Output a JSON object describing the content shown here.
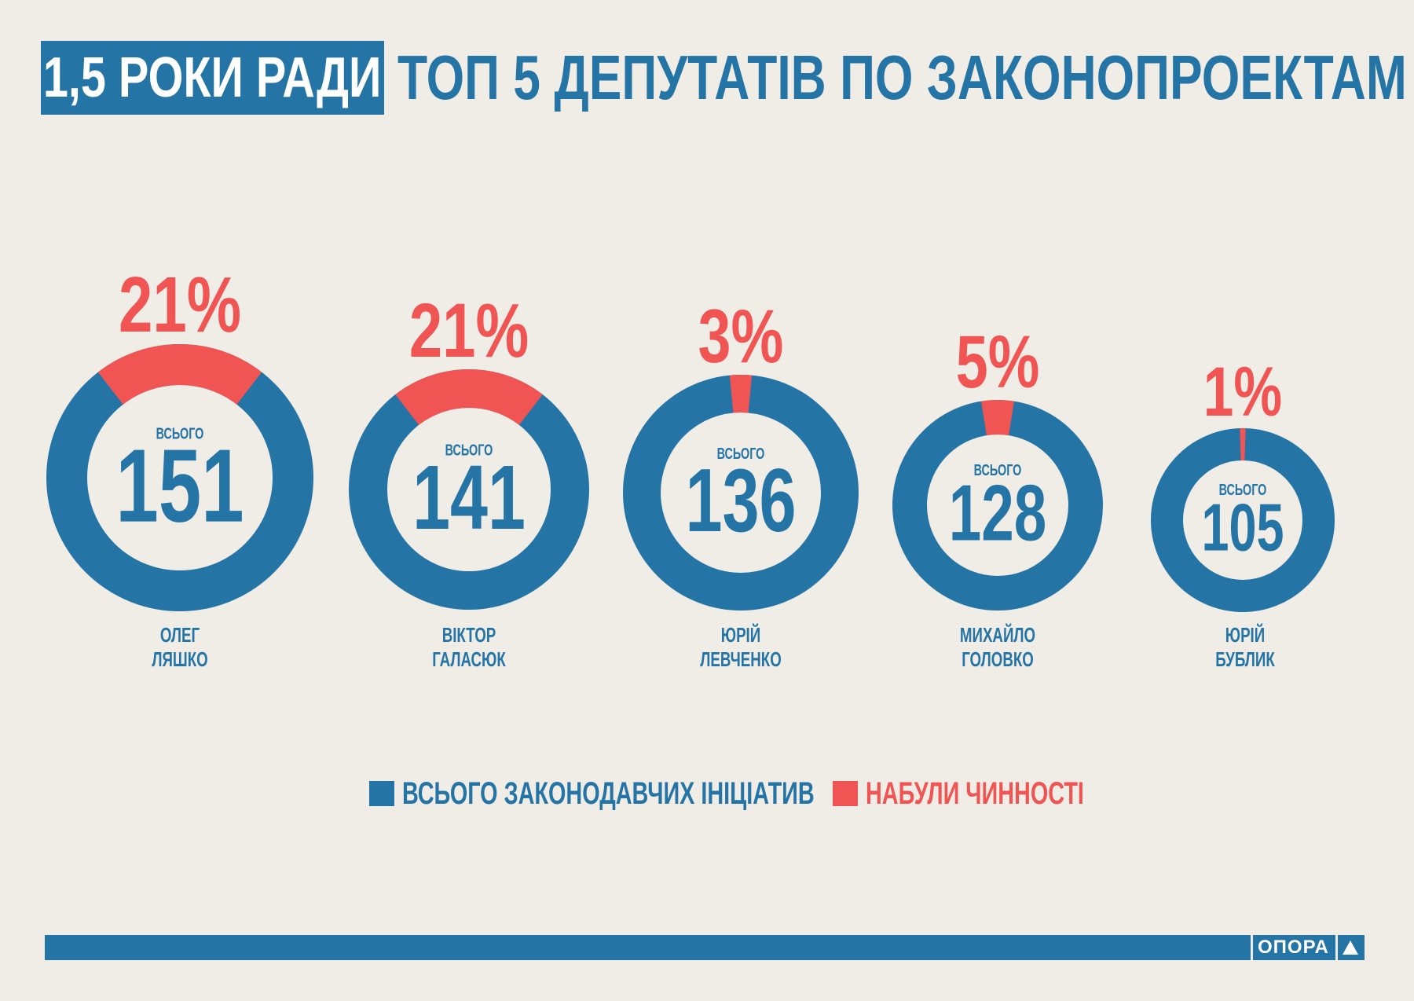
{
  "header": {
    "badge": "1,5 РОКИ РАДИ",
    "title": "ТОП 5 ДЕПУТАТІВ ПО ЗАКОНОПРОЕКТАМ"
  },
  "colors": {
    "blue": "#2474a6",
    "red": "#f05553",
    "background": "#f0ece6"
  },
  "chart_data": {
    "type": "donut",
    "title": "ТОП 5 ДЕПУТАТІВ ПО ЗАКОНОПРОЕКТАМ",
    "center_label": "ВСЬОГО",
    "legend": [
      {
        "name": "ВСЬОГО ЗАКОНОДАВЧИХ ІНІЦІАТИВ",
        "color": "#2474a6"
      },
      {
        "name": "НАБУЛИ ЧИННОСТІ",
        "color": "#f05553"
      }
    ],
    "series": [
      {
        "first_name": "ОЛЕГ",
        "last_name": "ЛЯШКО",
        "total": 151,
        "enacted_percent": 21,
        "percent_label": "21%"
      },
      {
        "first_name": "ВІКТОР",
        "last_name": "ГАЛАСЮК",
        "total": 141,
        "enacted_percent": 21,
        "percent_label": "21%"
      },
      {
        "first_name": "ЮРІЙ",
        "last_name": "ЛЕВЧЕНКО",
        "total": 136,
        "enacted_percent": 3,
        "percent_label": "3%"
      },
      {
        "first_name": "МИХАЙЛО",
        "last_name": "ГОЛОВКО",
        "total": 128,
        "enacted_percent": 5,
        "percent_label": "5%"
      },
      {
        "first_name": "ЮРІЙ",
        "last_name": "БУБЛИК",
        "total": 105,
        "enacted_percent": 1,
        "percent_label": "1%"
      }
    ]
  },
  "footer": {
    "brand": "ОПОРА"
  }
}
